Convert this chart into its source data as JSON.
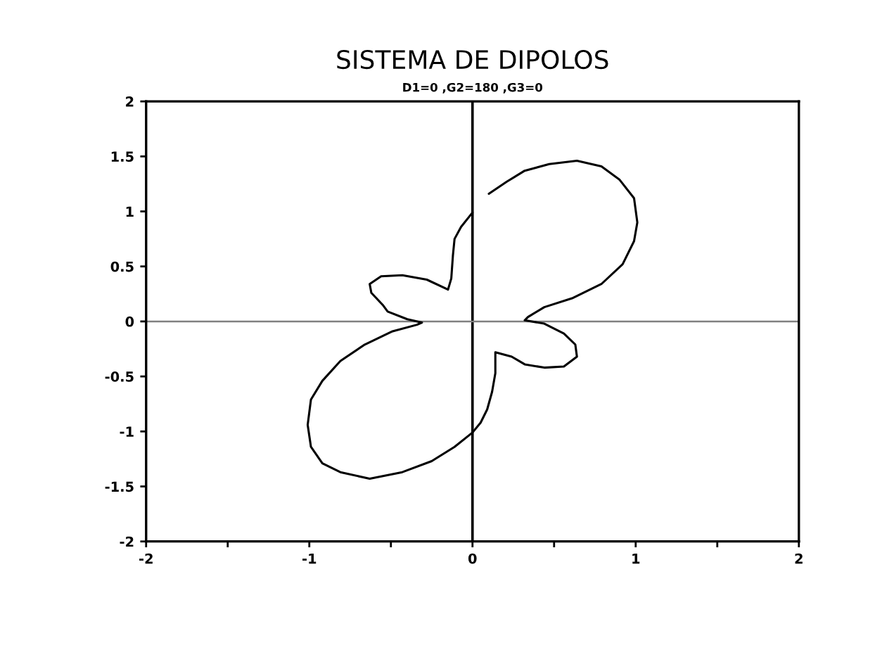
{
  "chart_data": {
    "type": "line",
    "title": "SISTEMA DE DIPOLOS",
    "subtitle": "D1=0 ,G2=180 ,G3=0",
    "x": [
      0.1,
      0.21,
      0.32,
      0.47,
      0.64,
      0.79,
      0.9,
      0.99,
      1.01,
      0.99,
      0.92,
      0.79,
      0.61,
      0.44,
      0.34,
      0.32,
      0.44,
      0.56,
      0.63,
      0.64,
      0.56,
      0.44,
      0.32,
      0.24,
      0.14,
      0.14,
      0.12,
      0.09,
      0.05,
      0.0,
      -0.11,
      -0.25,
      -0.43,
      -0.63,
      -0.81,
      -0.92,
      -0.99,
      -1.01,
      -0.99,
      -0.92,
      -0.81,
      -0.66,
      -0.49,
      -0.34,
      -0.31,
      -0.4,
      -0.52,
      -0.55,
      -0.62,
      -0.63,
      -0.56,
      -0.43,
      -0.28,
      -0.15,
      -0.13,
      -0.12,
      -0.11,
      -0.07,
      0.0
    ],
    "values": [
      1.16,
      1.27,
      1.37,
      1.43,
      1.46,
      1.41,
      1.29,
      1.12,
      0.9,
      0.73,
      0.52,
      0.34,
      0.21,
      0.13,
      0.04,
      0.01,
      -0.02,
      -0.11,
      -0.21,
      -0.32,
      -0.41,
      -0.42,
      -0.39,
      -0.32,
      -0.28,
      -0.47,
      -0.64,
      -0.8,
      -0.92,
      -1.01,
      -1.14,
      -1.27,
      -1.37,
      -1.43,
      -1.37,
      -1.29,
      -1.14,
      -0.94,
      -0.71,
      -0.54,
      -0.36,
      -0.21,
      -0.09,
      -0.03,
      -0.01,
      0.02,
      0.09,
      0.15,
      0.26,
      0.34,
      0.41,
      0.42,
      0.38,
      0.29,
      0.39,
      0.6,
      0.75,
      0.86,
      0.99
    ],
    "color": "#000000",
    "xlim": [
      -2,
      2
    ],
    "ylim": [
      -2,
      2
    ],
    "xticks": [
      -2,
      {
        "value": -1.5,
        "label": null
      },
      -1,
      {
        "value": -0.5,
        "label": null
      },
      0,
      {
        "value": 0.5,
        "label": null
      },
      1,
      {
        "value": 1.5,
        "label": null
      },
      2
    ],
    "yticks": [
      -2,
      -1.5,
      -1,
      -0.5,
      0,
      0.5,
      1,
      1.5,
      2
    ],
    "ref_lines": [
      {
        "axis": "x",
        "value": 0,
        "color": "#000000"
      },
      {
        "axis": "y",
        "value": 0,
        "color": "#808080"
      }
    ],
    "grid": false
  }
}
